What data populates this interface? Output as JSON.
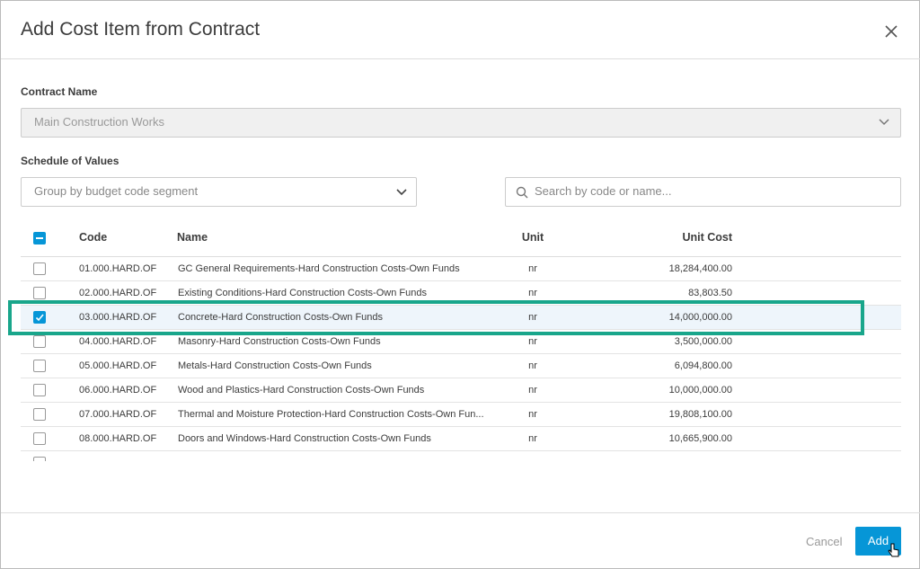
{
  "dialog": {
    "title": "Add Cost Item from Contract"
  },
  "contract": {
    "label": "Contract Name",
    "value": "Main Construction Works"
  },
  "schedule": {
    "label": "Schedule of Values",
    "group_placeholder": "Group by budget code segment",
    "search_placeholder": "Search by code or name..."
  },
  "table": {
    "headers": [
      "Code",
      "Name",
      "Unit",
      "Unit Cost"
    ],
    "rows": [
      {
        "code": "01.000.HARD.OF",
        "name": "GC General Requirements-Hard Construction Costs-Own Funds",
        "unit": "nr",
        "cost": "18,284,400.00",
        "checked": false
      },
      {
        "code": "02.000.HARD.OF",
        "name": "Existing Conditions-Hard Construction Costs-Own Funds",
        "unit": "nr",
        "cost": "83,803.50",
        "checked": false
      },
      {
        "code": "03.000.HARD.OF",
        "name": "Concrete-Hard Construction Costs-Own Funds",
        "unit": "nr",
        "cost": "14,000,000.00",
        "checked": true
      },
      {
        "code": "04.000.HARD.OF",
        "name": "Masonry-Hard Construction Costs-Own Funds",
        "unit": "nr",
        "cost": "3,500,000.00",
        "checked": false
      },
      {
        "code": "05.000.HARD.OF",
        "name": "Metals-Hard Construction Costs-Own Funds",
        "unit": "nr",
        "cost": "6,094,800.00",
        "checked": false
      },
      {
        "code": "06.000.HARD.OF",
        "name": "Wood and Plastics-Hard Construction Costs-Own Funds",
        "unit": "nr",
        "cost": "10,000,000.00",
        "checked": false
      },
      {
        "code": "07.000.HARD.OF",
        "name": "Thermal and Moisture Protection-Hard Construction Costs-Own Fun...",
        "unit": "nr",
        "cost": "19,808,100.00",
        "checked": false
      },
      {
        "code": "08.000.HARD.OF",
        "name": "Doors and Windows-Hard Construction Costs-Own Funds",
        "unit": "nr",
        "cost": "10,665,900.00",
        "checked": false
      }
    ]
  },
  "footer": {
    "cancel": "Cancel",
    "add": "Add"
  }
}
